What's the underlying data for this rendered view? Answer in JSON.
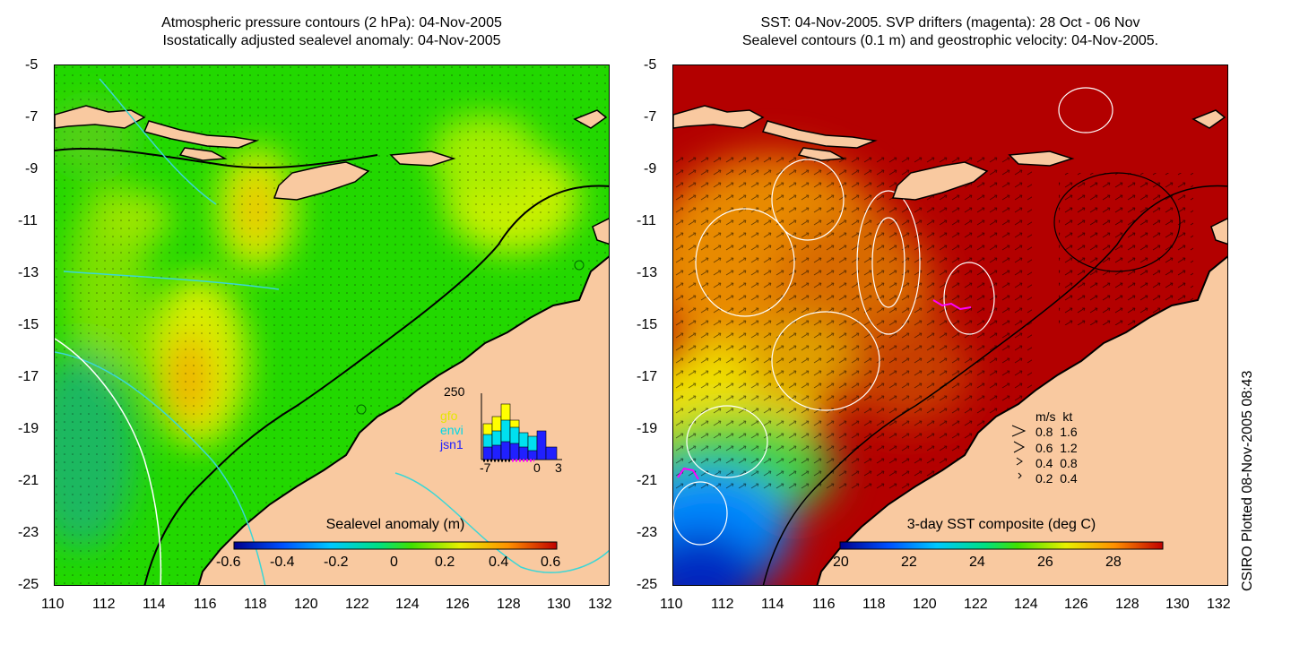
{
  "left_map": {
    "title_line1": "Atmospheric pressure contours (2 hPa): 04-Nov-2005",
    "title_line2": "Isostatically adjusted sealevel anomaly: 04-Nov-2005",
    "colorbar": {
      "title": "Sealevel anomaly (m)",
      "ticks": [
        "-0.6",
        "-0.4",
        "-0.2",
        "0",
        "0.2",
        "0.4",
        "0.6"
      ],
      "range": [
        -0.6,
        0.6
      ]
    },
    "inset": {
      "top_label": "250",
      "x_ticks": [
        "-7",
        "0",
        "3"
      ],
      "legend": [
        "gfo",
        "envi",
        "jsn1"
      ]
    }
  },
  "right_map": {
    "title_line1": "SST: 04-Nov-2005. SVP drifters (magenta): 28 Oct - 06 Nov",
    "title_line2": "Sealevel contours (0.1 m) and geostrophic velocity: 04-Nov-2005.",
    "colorbar": {
      "title": "3-day SST composite (deg C)",
      "ticks": [
        "20",
        "22",
        "24",
        "26",
        "28"
      ],
      "range": [
        20,
        29.5
      ]
    },
    "velocity_legend": {
      "header": "m/s  kt",
      "rows": [
        "0.8  1.6",
        "0.6  1.2",
        "0.4  0.8",
        "0.2  0.4"
      ]
    }
  },
  "axes": {
    "y_ticks": [
      "-5",
      "-7",
      "-9",
      "-11",
      "-13",
      "-15",
      "-17",
      "-19",
      "-21",
      "-23",
      "-25"
    ],
    "x_ticks": [
      "110",
      "112",
      "114",
      "116",
      "118",
      "120",
      "122",
      "124",
      "126",
      "128",
      "130",
      "132"
    ]
  },
  "credit": "CSIRO Plotted 08-Nov-2005 08:43",
  "colors": {
    "land": "#f9c9a0",
    "sla_background": "#22d800",
    "sst_warm": "#b30000",
    "coast": "#000000",
    "isobath": "#3ad6d6",
    "drifter": "#ff00ff"
  }
}
